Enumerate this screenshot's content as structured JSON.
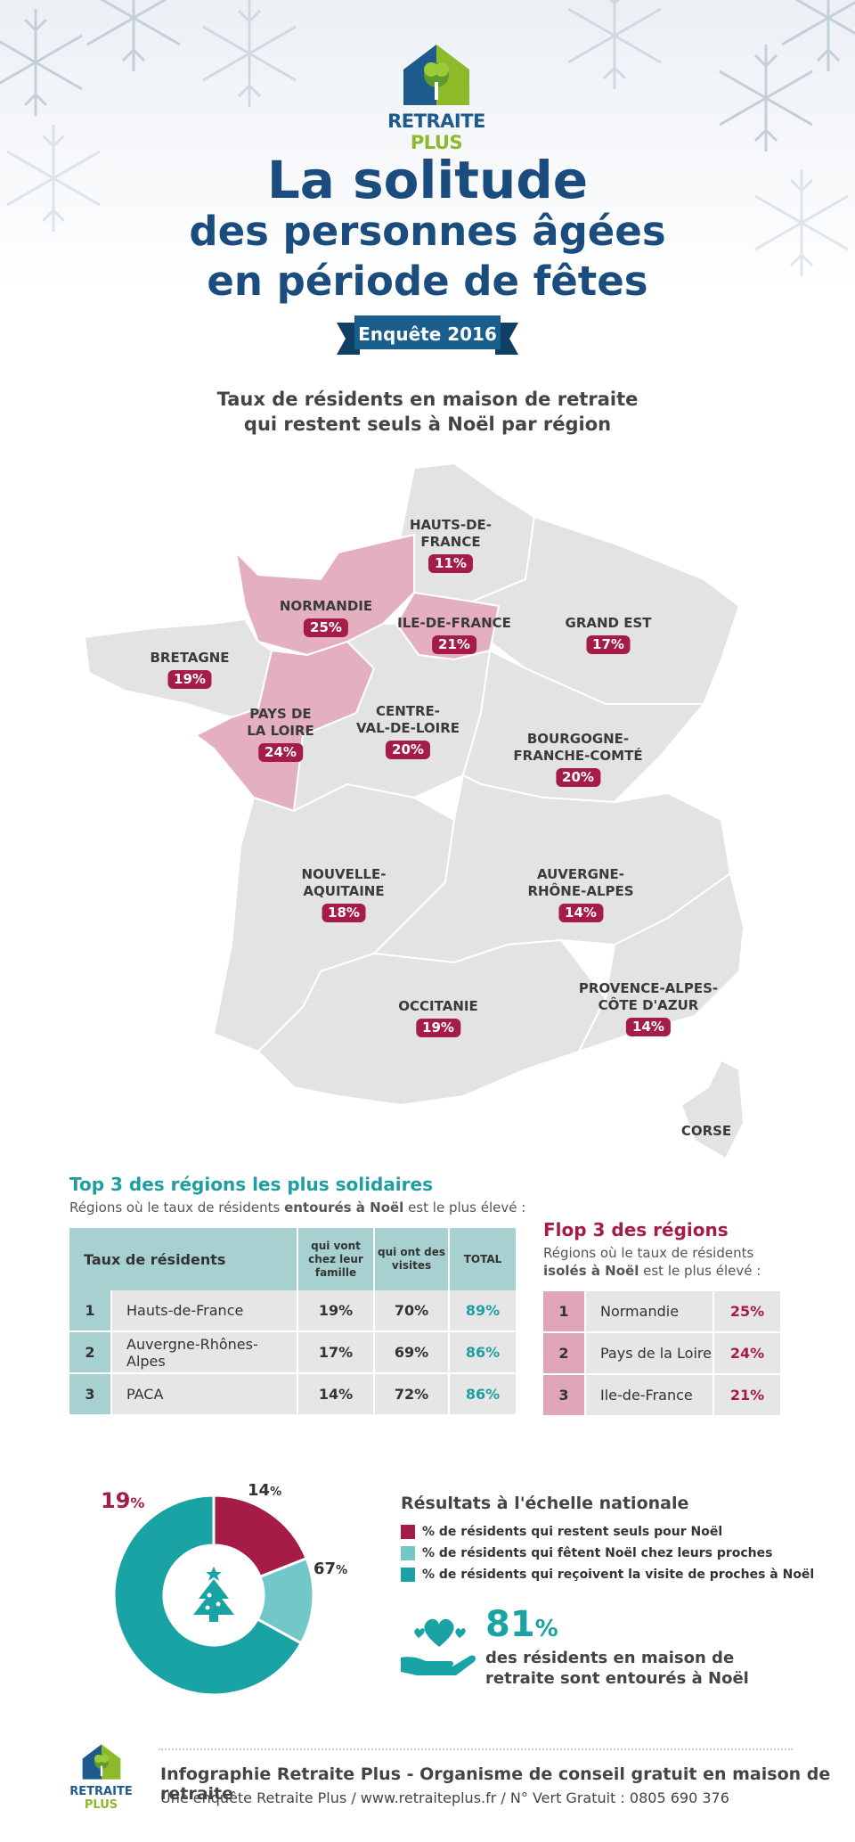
{
  "brand": {
    "name_part1": "RETRAITE",
    "name_part2": "PLUS",
    "color_blue": "#1e5a8c",
    "color_green": "#8dba2a"
  },
  "header": {
    "title_line1": "La solitude",
    "title_line2": "des personnes âgées",
    "title_line3": "en période de fêtes",
    "ribbon": "Enquête 2016"
  },
  "map": {
    "subtitle_line1": "Taux de résidents en maison de retraite",
    "subtitle_line2": "qui restent seuls à Noël par région",
    "highlight_color": "#e4b0bf",
    "base_color": "#e3e3e3",
    "badge_color": "#a51d47",
    "regions": [
      {
        "name_line1": "HAUTS-DE-",
        "name_line2": "FRANCE",
        "pct": "11%",
        "highlight": false
      },
      {
        "name_line1": "NORMANDIE",
        "name_line2": "",
        "pct": "25%",
        "highlight": true
      },
      {
        "name_line1": "ILE-DE-FRANCE",
        "name_line2": "",
        "pct": "21%",
        "highlight": true
      },
      {
        "name_line1": "GRAND EST",
        "name_line2": "",
        "pct": "17%",
        "highlight": false
      },
      {
        "name_line1": "BRETAGNE",
        "name_line2": "",
        "pct": "19%",
        "highlight": false
      },
      {
        "name_line1": "PAYS DE",
        "name_line2": "LA LOIRE",
        "pct": "24%",
        "highlight": true
      },
      {
        "name_line1": "CENTRE-",
        "name_line2": "VAL-DE-LOIRE",
        "pct": "20%",
        "highlight": false
      },
      {
        "name_line1": "BOURGOGNE-",
        "name_line2": "FRANCHE-COMTÉ",
        "pct": "20%",
        "highlight": false
      },
      {
        "name_line1": "NOUVELLE-",
        "name_line2": "AQUITAINE",
        "pct": "18%",
        "highlight": false
      },
      {
        "name_line1": "AUVERGNE-",
        "name_line2": "RHÔNE-ALPES",
        "pct": "14%",
        "highlight": false
      },
      {
        "name_line1": "OCCITANIE",
        "name_line2": "",
        "pct": "19%",
        "highlight": false
      },
      {
        "name_line1": "PROVENCE-ALPES-",
        "name_line2": "CÔTE D'AZUR",
        "pct": "14%",
        "highlight": false
      },
      {
        "name_line1": "CORSE",
        "name_line2": "",
        "pct": "",
        "highlight": false
      }
    ]
  },
  "top3": {
    "title": "Top 3 des régions les plus solidaires",
    "desc_part1": "Régions où le taux de résidents ",
    "desc_bold": "entourés à Noël",
    "desc_part2": " est le plus élevé :",
    "headers": [
      "Taux de résidents",
      "qui vont chez leur famille",
      "qui ont des visites",
      "TOTAL"
    ],
    "rows": [
      {
        "rank": "1",
        "region": "Hauts-de-France",
        "family": "19%",
        "visits": "70%",
        "total": "89%"
      },
      {
        "rank": "2",
        "region": "Auvergne-Rhônes-Alpes",
        "family": "17%",
        "visits": "69%",
        "total": "86%"
      },
      {
        "rank": "3",
        "region": "PACA",
        "family": "14%",
        "visits": "72%",
        "total": "86%"
      }
    ]
  },
  "flop3": {
    "title": "Flop 3 des régions",
    "desc_part1": "Régions où le taux de résidents",
    "desc_bold": "isolés à Noël",
    "desc_part2": " est le plus élevé :",
    "rows": [
      {
        "rank": "1",
        "region": "Normandie",
        "pct": "25%"
      },
      {
        "rank": "2",
        "region": "Pays de la Loire",
        "pct": "24%"
      },
      {
        "rank": "3",
        "region": "Ile-de-France",
        "pct": "21%"
      }
    ]
  },
  "national": {
    "title": "Résultats à l'échelle nationale",
    "slices": [
      {
        "label": "% de résidents qui restent seuls pour Noël",
        "value": 19,
        "display": "19",
        "color": "#a51d47"
      },
      {
        "label": "% de résidents qui fêtent Noël chez leurs proches",
        "value": 14,
        "display": "14",
        "color": "#72c8c9"
      },
      {
        "label": "% de résidents qui reçoivent la visite de proches à Noël",
        "value": 67,
        "display": "67",
        "color": "#1aa3a4"
      }
    ],
    "percent_sign": "%",
    "big_number": "81",
    "big_text_line1": "des résidents en maison de",
    "big_text_line2": "retraite sont entourés à Noël"
  },
  "footer": {
    "line1": "Infographie Retraite Plus - Organisme de conseil gratuit en maison de retraite",
    "line2": "Une enquête Retraite Plus  /  www.retraiteplus.fr  /  N° Vert Gratuit : 0805 690 376"
  }
}
